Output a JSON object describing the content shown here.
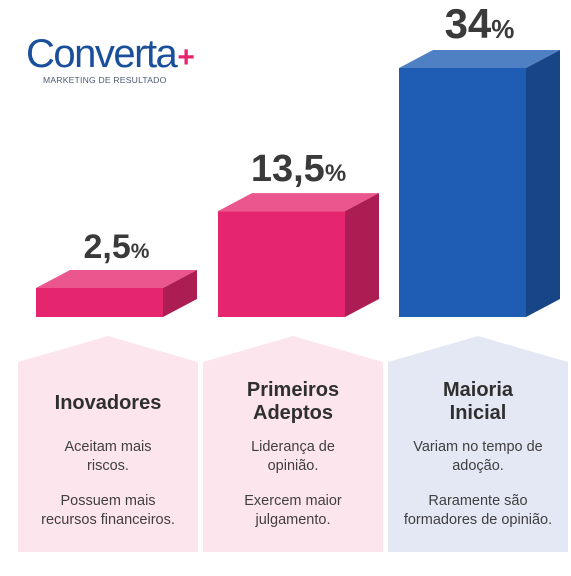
{
  "brand": {
    "name": "Converta",
    "plus": "+",
    "tagline": "MARKETING DE RESULTADO"
  },
  "colors": {
    "pink": "#e5266e",
    "blue": "#1f5cb3",
    "card_pink": "#fce5ec",
    "card_blue": "#e3e8f4",
    "text": "#3a3a3a"
  },
  "chart_data": {
    "type": "bar",
    "categories": [
      "Inovadores",
      "Primeiros Adeptos",
      "Maioria Inicial"
    ],
    "values": [
      2.5,
      13.5,
      34
    ],
    "value_labels": [
      "2,5",
      "13,5",
      "34"
    ],
    "unit": "%",
    "bar_colors": [
      "#e5266e",
      "#e5266e",
      "#1f5cb3"
    ]
  },
  "cards": [
    {
      "title_lines": [
        "Inovadores"
      ],
      "text1": [
        "Aceitam mais",
        "riscos."
      ],
      "text2": [
        "Possuem mais",
        "recursos financeiros."
      ]
    },
    {
      "title_lines": [
        "Primeiros",
        "Adeptos"
      ],
      "text1": [
        "Liderança de",
        "opinião."
      ],
      "text2": [
        "Exercem maior",
        "julgamento."
      ]
    },
    {
      "title_lines": [
        "Maioria",
        "Inicial"
      ],
      "text1": [
        "Variam no tempo de",
        "adoção."
      ],
      "text2": [
        "Raramente são",
        "formadores de opinião."
      ]
    }
  ]
}
